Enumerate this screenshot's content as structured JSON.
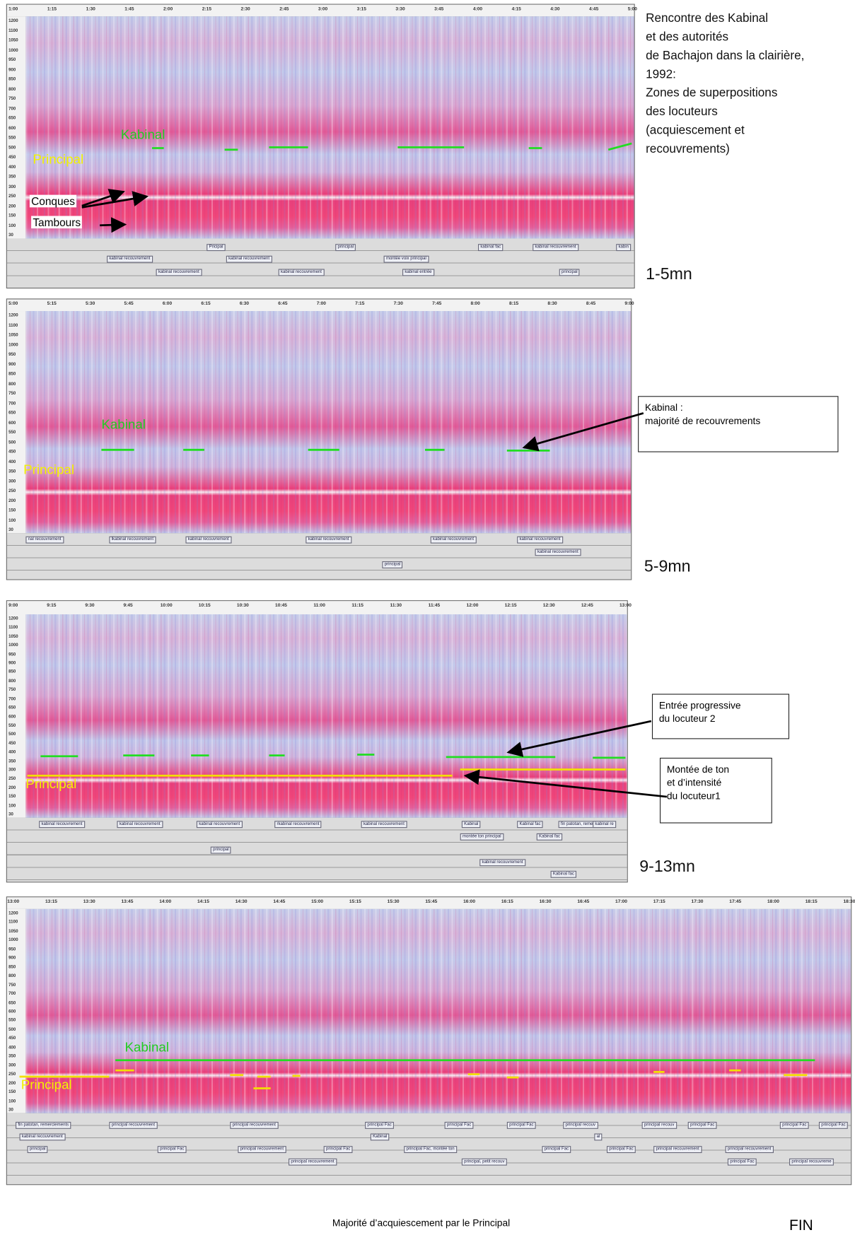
{
  "frequency_ticks": [
    "1200",
    "1100",
    "1050",
    "1000",
    "950",
    "900",
    "850",
    "800",
    "750",
    "700",
    "650",
    "600",
    "550",
    "500",
    "450",
    "400",
    "350",
    "300",
    "250",
    "200",
    "150",
    "100",
    "30"
  ],
  "side_note": [
    "Rencontre des Kabinal",
    "et des autorités",
    "de Bachajon dans la clairière,",
    "1992:",
    "Zones de superpositions",
    "des locuteurs",
    "(acquiescement et",
    "recouvrements)"
  ],
  "panels": [
    {
      "range": "1-5mn",
      "time_ticks": [
        "1:00",
        "1:15",
        "1:30",
        "1:45",
        "2:00",
        "2:15",
        "2:30",
        "2:45",
        "3:00",
        "3:15",
        "3:30",
        "3:45",
        "4:00",
        "4:15",
        "4:30",
        "4:45",
        "5:00"
      ],
      "speaker_labels": [
        "Kabinal",
        "Principal",
        "Conques",
        "Tambours"
      ],
      "tiers": [
        "Pricipal",
        "principal",
        "kabinal fac",
        "kabinal recouvrement",
        "kabin",
        "kabinal recouvrement",
        "kabinal recouvrement",
        "montée voix principal",
        "kabinal recouvrement",
        "kabinal recouvrement",
        "kabinal entrée",
        "principal"
      ]
    },
    {
      "range": "5-9mn",
      "time_ticks": [
        "5:00",
        "5:15",
        "5:30",
        "5:45",
        "6:00",
        "6:15",
        "6:30",
        "6:45",
        "7:00",
        "7:15",
        "7:30",
        "7:45",
        "8:00",
        "8:15",
        "8:30",
        "8:45",
        "9:00"
      ],
      "speaker_labels": [
        "Kabinal",
        "Principal"
      ],
      "tiers": [
        "nal recouvrement",
        "lkabinal recouvrement",
        "kabinal recouvrement",
        "kabinal recouvrement",
        "kabinal recouvrement",
        "kabinal recouvrement",
        "kabinal recouvrement",
        "principal"
      ]
    },
    {
      "range": "9-13mn",
      "time_ticks": [
        "9:00",
        "9:15",
        "9:30",
        "9:45",
        "10:00",
        "10:15",
        "10:30",
        "10:45",
        "11:00",
        "11:15",
        "11:30",
        "11:45",
        "12:00",
        "12:15",
        "12:30",
        "12:45",
        "13:00"
      ],
      "speaker_labels": [
        "Principal"
      ],
      "tiers": [
        "kabinal recouvrement",
        "kabinal recouvrement",
        "kabinal recouvrement",
        "rkabinal recouvrement",
        "kabinal recouvrement",
        "Kabinal",
        "Kabinal fac",
        "fin patotan, remerciem",
        "kabinal re",
        "montée ton principal",
        "Kabinal fac",
        "principal",
        "kabinal recouvrement",
        "Kabinal fac"
      ]
    },
    {
      "range": null,
      "time_ticks": [
        "13:00",
        "13:15",
        "13:30",
        "13:45",
        "14:00",
        "14:15",
        "14:30",
        "14:45",
        "15:00",
        "15:15",
        "15:30",
        "15:45",
        "16:00",
        "16:15",
        "16:30",
        "16:45",
        "17:00",
        "17:15",
        "17:30",
        "17:45",
        "18:00",
        "18:15",
        "18:30"
      ],
      "speaker_labels": [
        "Kabinal",
        "Principal"
      ],
      "tiers": [
        "fin patotan, remerciements",
        "principal recouvrement",
        "principal recouvrement",
        "principal Fac",
        "principal Fac",
        "principal Fac",
        "principal recouv",
        "principal recouv",
        "principal Fac",
        "principal Fac",
        "principal Fac",
        "kabinal recouvrement",
        "Kabinal",
        "al",
        "principal",
        "principal Fac",
        "principal recouvrement",
        "principal Fac",
        "principal Fac, montée ton",
        "principal Fac",
        "principal Fac",
        "principal recouvrement",
        "principal recouvrement",
        "principal recouvrement",
        "principal, petit recouv",
        "principal Fac",
        "principal recouvreme"
      ]
    }
  ],
  "callouts": [
    [
      "Kabinal :",
      "majorité de recouvrements"
    ],
    [
      "Entrée progressive",
      "du locuteur 2"
    ],
    [
      "Montée de ton",
      "et d’intensité",
      "du locuteur1"
    ]
  ],
  "footer": "Majorité d’acquiescement par le Principal",
  "end": "FIN"
}
